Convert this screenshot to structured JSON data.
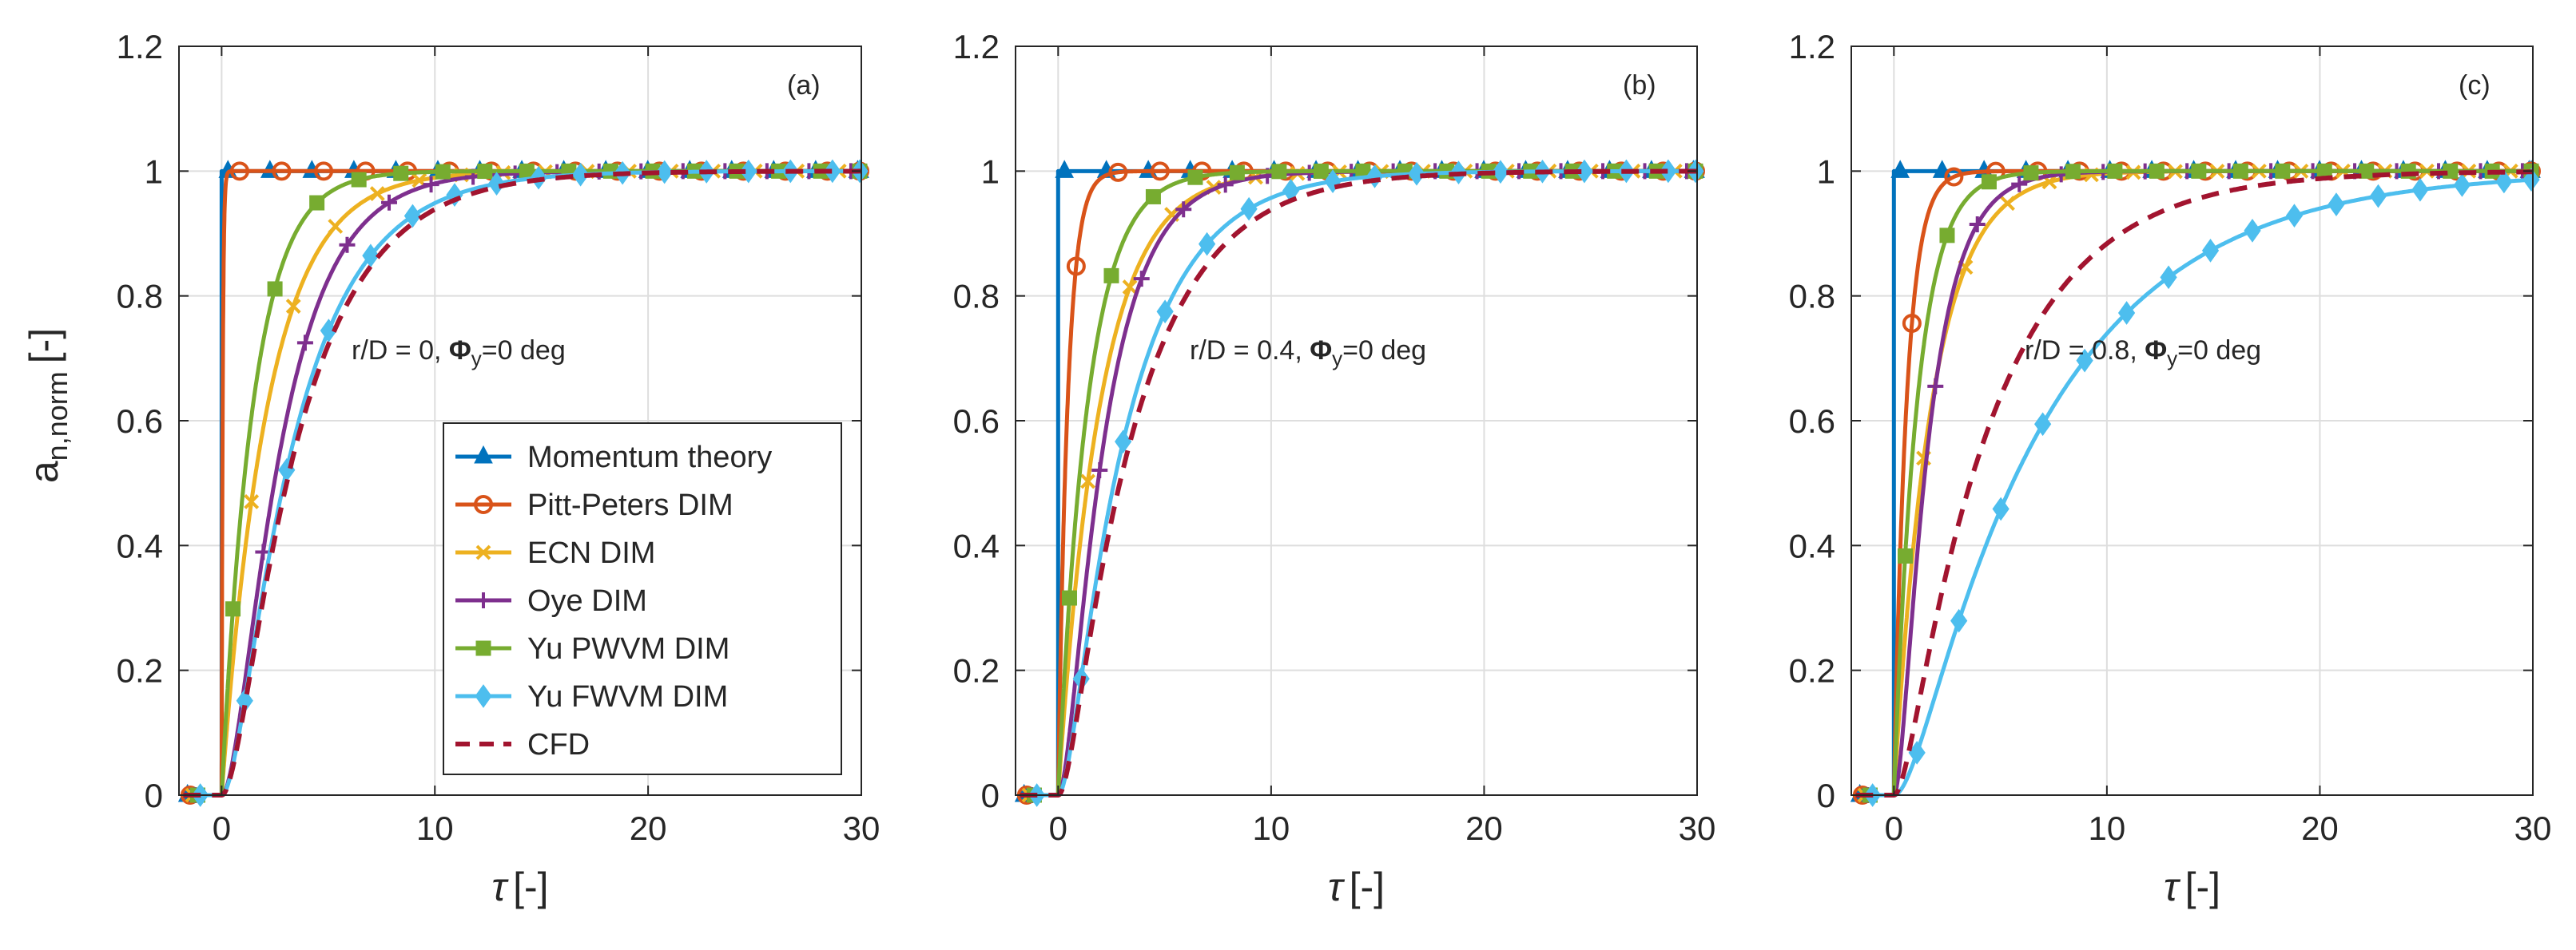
{
  "figure": {
    "ylabel_main": "a",
    "ylabel_sub": "n,norm",
    "ylabel_unit": "[-]",
    "xlabel_sym": "τ",
    "xlabel_unit": "[-]"
  },
  "legend": {
    "entries": [
      {
        "name": "Momentum theory",
        "color": "#0072BD",
        "marker": "triangle",
        "dashed": false
      },
      {
        "name": "Pitt-Peters DIM",
        "color": "#D95319",
        "marker": "circle",
        "dashed": false
      },
      {
        "name": "ECN DIM",
        "color": "#EDB120",
        "marker": "x",
        "dashed": false
      },
      {
        "name": "Oye DIM",
        "color": "#7E2F8E",
        "marker": "plus",
        "dashed": false
      },
      {
        "name": "Yu PWVM DIM",
        "color": "#77AC30",
        "marker": "square",
        "dashed": false
      },
      {
        "name": "Yu FWVM DIM",
        "color": "#4DBEEE",
        "marker": "diamond",
        "dashed": false
      },
      {
        "name": "CFD",
        "color": "#A2142F",
        "marker": "none",
        "dashed": true
      }
    ]
  },
  "chart_data": [
    {
      "type": "line",
      "panel": "(a)",
      "annotation": {
        "prefix": "r/D = 0, ",
        "phi": "Φ",
        "phi_sub": "y",
        "suffix": "=0 deg"
      },
      "xlim": [
        -2,
        30
      ],
      "ylim": [
        0,
        1.2
      ],
      "xticks": [
        0,
        10,
        20,
        30
      ],
      "yticks": [
        0,
        0.2,
        0.4,
        0.6,
        0.8,
        1,
        1.2
      ],
      "xtick_labels": [
        "0",
        "10",
        "20",
        "30"
      ],
      "ytick_labels": [
        "0",
        "0.2",
        "0.4",
        "0.6",
        "0.8",
        "1",
        "1.2"
      ],
      "grid": true,
      "series": [
        {
          "name": "Momentum theory",
          "model": "step",
          "t0": 0
        },
        {
          "name": "Pitt-Peters DIM",
          "model": "exp",
          "t0": 0,
          "tau": 0.05
        },
        {
          "name": "ECN DIM",
          "model": "exp",
          "t0": 0,
          "tau": 2.2
        },
        {
          "name": "Oye DIM",
          "model": "oye",
          "t0": 0,
          "tau1": 0.8,
          "tau2": 2.3
        },
        {
          "name": "Yu PWVM DIM",
          "model": "exp",
          "t0": 0,
          "tau": 1.5
        },
        {
          "name": "Yu FWVM DIM",
          "model": "oye",
          "t0": 0,
          "tau1": 0.7,
          "tau2": 3.1
        },
        {
          "name": "CFD",
          "model": "oye",
          "t0": 0,
          "tau1": 0.7,
          "tau2": 3.3
        }
      ]
    },
    {
      "type": "line",
      "panel": "(b)",
      "annotation": {
        "prefix": "r/D = 0.4, ",
        "phi": "Φ",
        "phi_sub": "y",
        "suffix": "=0 deg"
      },
      "xlim": [
        -2,
        30
      ],
      "ylim": [
        0,
        1.2
      ],
      "xticks": [
        0,
        10,
        20,
        30
      ],
      "yticks": [
        0,
        0.2,
        0.4,
        0.6,
        0.8,
        1,
        1.2
      ],
      "xtick_labels": [
        "0",
        "10",
        "20",
        "30"
      ],
      "ytick_labels": [
        "0",
        "0.2",
        "0.4",
        "0.6",
        "0.8",
        "1",
        "1.2"
      ],
      "grid": true,
      "series": [
        {
          "name": "Momentum theory",
          "model": "step",
          "t0": 0
        },
        {
          "name": "Pitt-Peters DIM",
          "model": "exp",
          "t0": 0,
          "tau": 0.45
        },
        {
          "name": "ECN DIM",
          "model": "exp",
          "t0": 0,
          "tau": 2.0
        },
        {
          "name": "Oye DIM",
          "model": "oye",
          "t0": 0,
          "tau1": 0.5,
          "tau2": 1.9
        },
        {
          "name": "Yu PWVM DIM",
          "model": "exp",
          "t0": 0,
          "tau": 1.4
        },
        {
          "name": "Yu FWVM DIM",
          "model": "oye",
          "t0": 0,
          "tau1": 0.5,
          "tau2": 3.0
        },
        {
          "name": "CFD",
          "model": "oye",
          "t0": 0,
          "tau1": 0.5,
          "tau2": 3.4
        }
      ]
    },
    {
      "type": "line",
      "panel": "(c)",
      "annotation": {
        "prefix": "r/D = 0.8, ",
        "phi": "Φ",
        "phi_sub": "y",
        "suffix": "=0 deg"
      },
      "xlim": [
        -2,
        30
      ],
      "ylim": [
        0,
        1.2
      ],
      "xticks": [
        0,
        10,
        20,
        30
      ],
      "yticks": [
        0,
        0.2,
        0.4,
        0.6,
        0.8,
        1,
        1.2
      ],
      "xtick_labels": [
        "0",
        "10",
        "20",
        "30"
      ],
      "ytick_labels": [
        "0",
        "0.2",
        "0.4",
        "0.6",
        "0.8",
        "1",
        "1.2"
      ],
      "grid": true,
      "series": [
        {
          "name": "Momentum theory",
          "model": "step",
          "t0": 0
        },
        {
          "name": "Pitt-Peters DIM",
          "model": "exp",
          "t0": 0,
          "tau": 0.6
        },
        {
          "name": "ECN DIM",
          "model": "exp",
          "t0": 0,
          "tau": 1.8
        },
        {
          "name": "Oye DIM",
          "model": "oye",
          "t0": 0,
          "tau1": 0.4,
          "tau2": 1.4
        },
        {
          "name": "Yu PWVM DIM",
          "model": "exp",
          "t0": 0,
          "tau": 1.1
        },
        {
          "name": "Yu FWVM DIM",
          "model": "oye",
          "t0": 0,
          "tau1": 0.8,
          "tau2": 6.8
        },
        {
          "name": "CFD",
          "model": "oye",
          "t0": 0,
          "tau1": 0.5,
          "tau2": 4.4
        }
      ]
    }
  ]
}
